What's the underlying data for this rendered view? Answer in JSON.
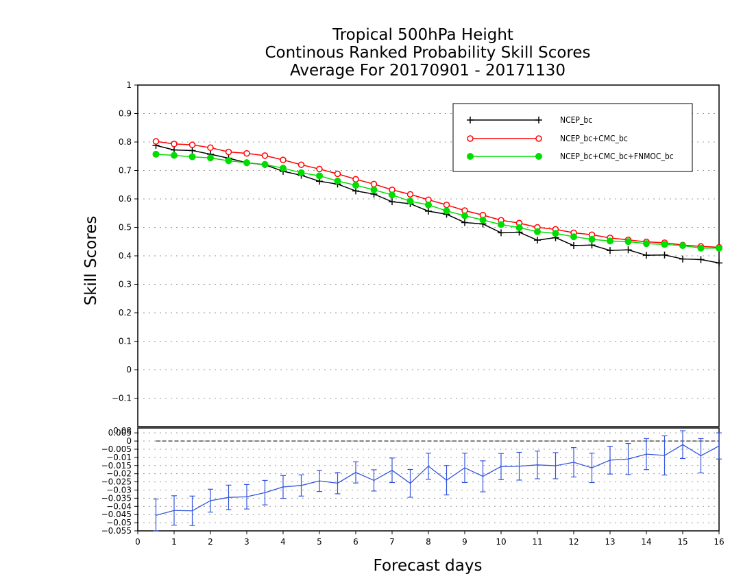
{
  "chart_data": [
    {
      "type": "line",
      "title": [
        "Tropical 500hPa Height",
        "Continous Ranked Probability Skill Scores",
        "Average For 20170901 - 20171130"
      ],
      "xlabel": "Forecast days",
      "ylabel": "Skill Scores",
      "xlim": [
        0,
        16
      ],
      "ylim": [
        -0.2,
        1
      ],
      "xticks": [
        "0",
        "1",
        "2",
        "3",
        "4",
        "5",
        "6",
        "7",
        "8",
        "9",
        "10",
        "11",
        "12",
        "13",
        "14",
        "15",
        "16"
      ],
      "yticks": [
        "1",
        "0.9",
        "0.8",
        "0.7",
        "0.6",
        "0.5",
        "0.4",
        "0.3",
        "0.2",
        "0.1",
        "0",
        "−0.1"
      ],
      "grid": true,
      "legend_position": "top-right",
      "x": [
        0.5,
        1,
        1.5,
        2,
        2.5,
        3,
        3.5,
        4,
        4.5,
        5,
        5.5,
        6,
        6.5,
        7,
        7.5,
        8,
        8.5,
        9,
        9.5,
        10,
        10.5,
        11,
        11.5,
        12,
        12.5,
        13,
        13.5,
        14,
        14.5,
        15,
        15.5,
        16
      ],
      "series": [
        {
          "name": "NCEP_bc",
          "color": "#000000",
          "marker": "plus",
          "values": [
            0.788,
            0.772,
            0.77,
            0.757,
            0.743,
            0.727,
            0.72,
            0.697,
            0.683,
            0.662,
            0.652,
            0.628,
            0.617,
            0.59,
            0.583,
            0.557,
            0.546,
            0.517,
            0.512,
            0.481,
            0.483,
            0.455,
            0.464,
            0.436,
            0.438,
            0.419,
            0.421,
            0.402,
            0.403,
            0.389,
            0.387,
            0.375
          ]
        },
        {
          "name": "NCEP_bc+CMC_bc",
          "color": "#ff0000",
          "marker": "open-circle",
          "values": [
            0.802,
            0.793,
            0.79,
            0.78,
            0.765,
            0.76,
            0.752,
            0.737,
            0.72,
            0.705,
            0.688,
            0.669,
            0.652,
            0.632,
            0.616,
            0.597,
            0.579,
            0.559,
            0.543,
            0.525,
            0.515,
            0.5,
            0.493,
            0.481,
            0.474,
            0.463,
            0.456,
            0.449,
            0.446,
            0.438,
            0.433,
            0.43
          ]
        },
        {
          "name": "NCEP_bc+CMC_bc+FNMOC_bc",
          "color": "#00dd00",
          "marker": "filled-circle",
          "values": [
            0.757,
            0.753,
            0.748,
            0.744,
            0.734,
            0.727,
            0.721,
            0.708,
            0.692,
            0.681,
            0.663,
            0.648,
            0.632,
            0.614,
            0.592,
            0.579,
            0.558,
            0.541,
            0.526,
            0.51,
            0.499,
            0.485,
            0.479,
            0.467,
            0.458,
            0.452,
            0.45,
            0.443,
            0.44,
            0.436,
            0.427,
            0.427
          ]
        }
      ]
    },
    {
      "type": "line",
      "xlim": [
        0,
        16
      ],
      "ylim": [
        -0.055,
        0.008
      ],
      "yticks": [
        "0.005",
        "0",
        "−0.005",
        "−0.01",
        "−0.015",
        "−0.02",
        "−0.025",
        "−0.03",
        "−0.035",
        "−0.04",
        "−0.045",
        "−0.05",
        "−0.055"
      ],
      "top_label_overlap": "0.08",
      "grid": true,
      "reference_line": 0,
      "x": [
        0.5,
        1,
        1.5,
        2,
        2.5,
        3,
        3.5,
        4,
        4.5,
        5,
        5.5,
        6,
        6.5,
        7,
        7.5,
        8,
        8.5,
        9,
        9.5,
        10,
        10.5,
        11,
        11.5,
        12,
        12.5,
        13,
        13.5,
        14,
        14.5,
        15,
        15.5,
        16
      ],
      "series": [
        {
          "color": "#3355dd",
          "values": [
            -0.0455,
            -0.0425,
            -0.0427,
            -0.0365,
            -0.0345,
            -0.0341,
            -0.0316,
            -0.0281,
            -0.0272,
            -0.0244,
            -0.0258,
            -0.0192,
            -0.0241,
            -0.0179,
            -0.0259,
            -0.0154,
            -0.024,
            -0.0164,
            -0.0216,
            -0.0156,
            -0.0154,
            -0.0146,
            -0.0151,
            -0.013,
            -0.0164,
            -0.0117,
            -0.011,
            -0.008,
            -0.0088,
            -0.0022,
            -0.009,
            -0.003
          ],
          "error": [
            0.01,
            0.009,
            0.009,
            0.007,
            0.0075,
            0.0075,
            0.0075,
            0.007,
            0.0065,
            0.0065,
            0.0065,
            0.0065,
            0.0065,
            0.0075,
            0.0085,
            0.008,
            0.009,
            0.009,
            0.0095,
            0.008,
            0.0085,
            0.0085,
            0.008,
            0.009,
            0.009,
            0.0085,
            0.0095,
            0.0095,
            0.012,
            0.0085,
            0.0105,
            0.008
          ]
        }
      ]
    }
  ],
  "colors": {
    "axis": "#000000",
    "grid": "#888888",
    "diff_series": "#3355dd"
  }
}
